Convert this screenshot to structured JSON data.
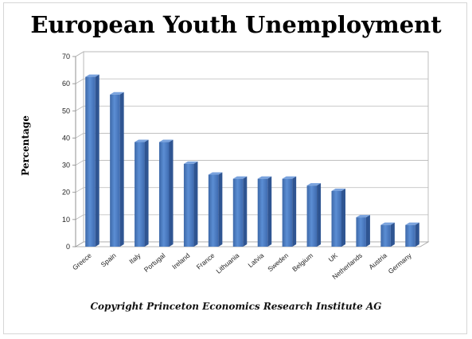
{
  "chart_data": {
    "type": "bar",
    "title": "European Youth Unemployment",
    "ylabel": "Percentage",
    "xlabel": "",
    "ylim": [
      0,
      70
    ],
    "yticks": [
      0,
      10,
      20,
      30,
      40,
      50,
      60,
      70
    ],
    "grid": true,
    "legend": "none",
    "bar_color": "#4f81bd",
    "categories": [
      "Greece",
      "Spain",
      "Italy",
      "Portugal",
      "Ireland",
      "France",
      "Lithuania",
      "Latvia",
      "Sweden",
      "Belgium",
      "UK",
      "Netherlands",
      "Austria",
      "Germany"
    ],
    "values": [
      62.5,
      56,
      38.5,
      38.5,
      30.5,
      26.5,
      25,
      25,
      25,
      22.5,
      20.5,
      10.8,
      8,
      8
    ]
  },
  "footer": {
    "copyright": "Copyright Princeton Economics Research Institute AG"
  }
}
